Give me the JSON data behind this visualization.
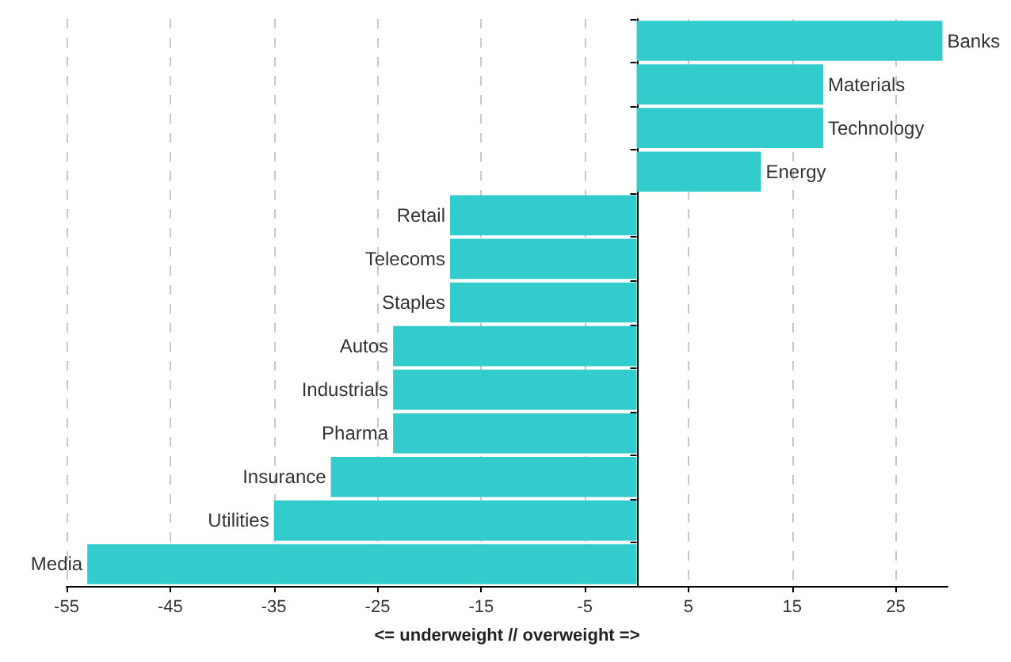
{
  "chart_data": {
    "type": "bar",
    "orientation": "horizontal",
    "xlabel": "<= underweight // overweight =>",
    "categories": [
      "Banks",
      "Materials",
      "Technology",
      "Energy",
      "Retail",
      "Telecoms",
      "Staples",
      "Autos",
      "Industrials",
      "Pharma",
      "Insurance",
      "Utilities",
      "Media"
    ],
    "values": [
      29.5,
      18,
      18,
      12,
      -18,
      -18,
      -18,
      -23.5,
      -23.5,
      -23.5,
      -29.5,
      -35,
      -53
    ],
    "color": "#33cccc",
    "xlim": [
      -55,
      30
    ],
    "xticks": [
      -55,
      -45,
      -35,
      -25,
      -15,
      -5,
      5,
      15,
      25
    ],
    "grid": "x",
    "tick_labels": "x"
  }
}
